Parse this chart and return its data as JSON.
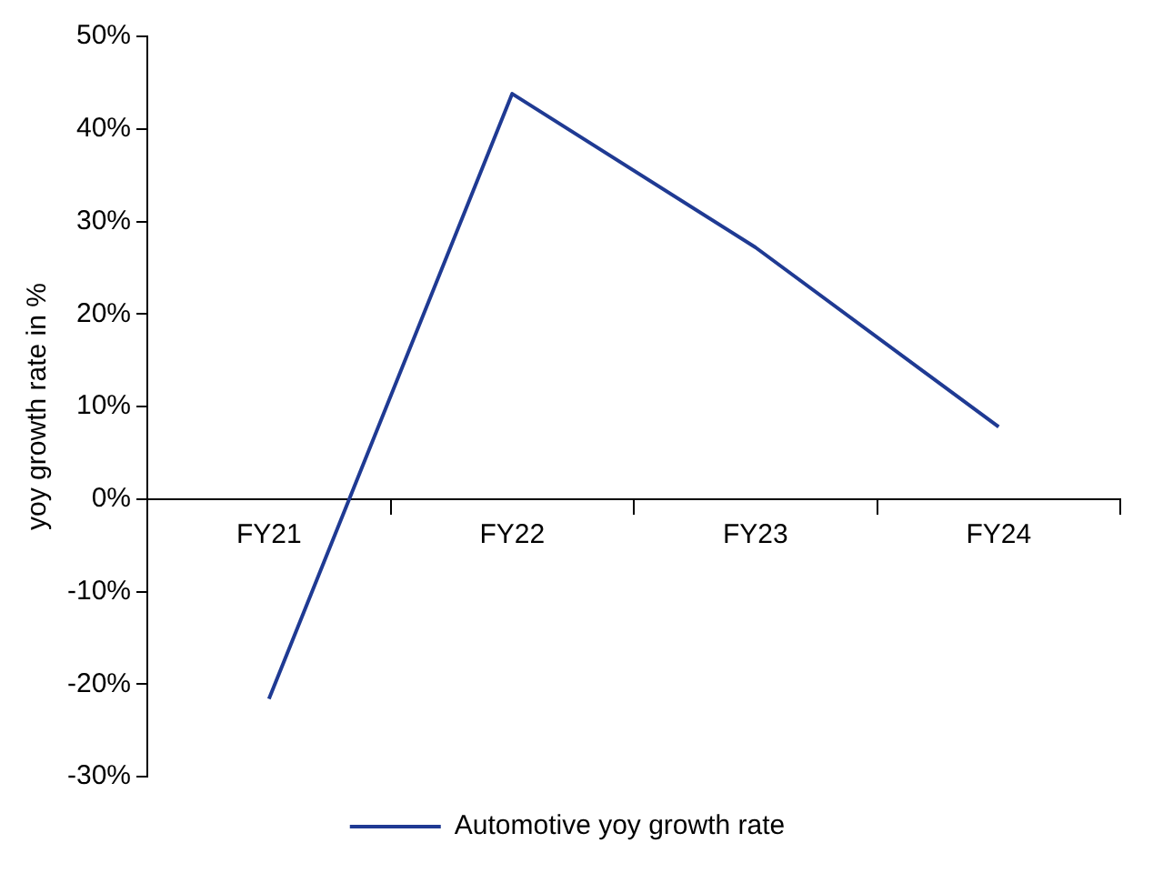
{
  "chart_data": {
    "type": "line",
    "ylabel": "yoy growth rate in %",
    "categories": [
      "FY21",
      "FY22",
      "FY23",
      "FY24"
    ],
    "series": [
      {
        "name": "Automotive yoy growth rate",
        "color": "#1f3a93",
        "values": [
          -21.6,
          43.8,
          27.2,
          7.8
        ]
      }
    ],
    "ylim": [
      -30,
      50
    ],
    "yticks": [
      {
        "value": -30,
        "label": "-30%"
      },
      {
        "value": -20,
        "label": "-20%"
      },
      {
        "value": -10,
        "label": "-10%"
      },
      {
        "value": 0,
        "label": "0%"
      },
      {
        "value": 10,
        "label": "10%"
      },
      {
        "value": 20,
        "label": "20%"
      },
      {
        "value": 30,
        "label": "30%"
      },
      {
        "value": 40,
        "label": "40%"
      },
      {
        "value": 50,
        "label": "50%"
      }
    ],
    "grid": false,
    "legend": "bottom",
    "marker": "none",
    "line_style": "solid"
  }
}
